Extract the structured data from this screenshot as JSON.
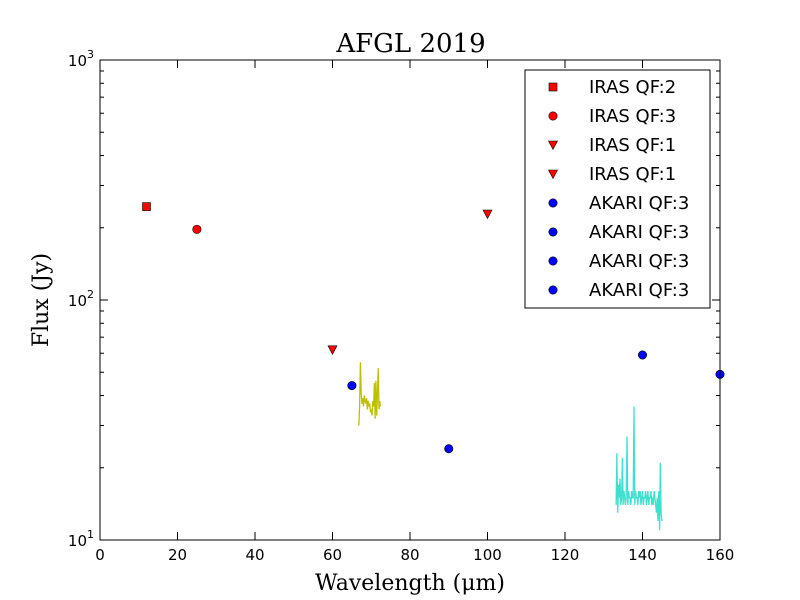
{
  "chart_data": {
    "type": "scatter",
    "title": "AFGL 2019",
    "xlabel": "Wavelength (μm)",
    "ylabel": "Flux (Jy)",
    "xlim": [
      0,
      160
    ],
    "ylim": [
      10,
      1000
    ],
    "yscale": "log",
    "x_ticks": [
      "0",
      "20",
      "40",
      "60",
      "80",
      "100",
      "120",
      "140",
      "160"
    ],
    "x_tick_values": [
      0,
      20,
      40,
      60,
      80,
      100,
      120,
      140,
      160
    ],
    "y_major_ticks": [
      {
        "value": 10,
        "base": "10",
        "exp": "1"
      },
      {
        "value": 100,
        "base": "10",
        "exp": "2"
      },
      {
        "value": 1000,
        "base": "10",
        "exp": "3"
      }
    ],
    "legend_position": "top-right",
    "colors": {
      "iras": "#ff0000",
      "akari": "#0000ff",
      "spectrum1": "#bfbf00",
      "spectrum2": "#40e0d0"
    },
    "series": [
      {
        "name": "IRAS QF:2",
        "marker": "square",
        "color": "#ff0000",
        "points": [
          [
            12,
            245
          ]
        ]
      },
      {
        "name": "IRAS QF:3",
        "marker": "circle",
        "color": "#ff0000",
        "points": [
          [
            25,
            197
          ]
        ]
      },
      {
        "name": "IRAS QF:1",
        "marker": "triangle-down",
        "color": "#ff0000",
        "points": [
          [
            60,
            62
          ]
        ]
      },
      {
        "name": "IRAS QF:1",
        "marker": "triangle-down",
        "color": "#ff0000",
        "points": [
          [
            100,
            228
          ]
        ]
      },
      {
        "name": "AKARI QF:3",
        "marker": "circle",
        "color": "#0000ff",
        "points": [
          [
            65,
            44
          ]
        ]
      },
      {
        "name": "AKARI QF:3",
        "marker": "circle",
        "color": "#0000ff",
        "points": [
          [
            90,
            24
          ]
        ]
      },
      {
        "name": "AKARI QF:3",
        "marker": "circle",
        "color": "#0000ff",
        "points": [
          [
            140,
            59
          ]
        ]
      },
      {
        "name": "AKARI QF:3",
        "marker": "circle",
        "color": "#0000ff",
        "points": [
          [
            160,
            49
          ]
        ]
      }
    ],
    "spectra": [
      {
        "name": "spectrum-1",
        "color": "#bfbf00",
        "points": [
          [
            66.8,
            30
          ],
          [
            67.0,
            36
          ],
          [
            67.2,
            55
          ],
          [
            67.4,
            41
          ],
          [
            67.6,
            37
          ],
          [
            67.8,
            39
          ],
          [
            68.0,
            36
          ],
          [
            68.2,
            40
          ],
          [
            68.4,
            38
          ],
          [
            68.6,
            37
          ],
          [
            68.8,
            39
          ],
          [
            69.0,
            35
          ],
          [
            69.2,
            38
          ],
          [
            69.4,
            36
          ],
          [
            69.6,
            37
          ],
          [
            69.8,
            34
          ],
          [
            70.0,
            35
          ],
          [
            70.2,
            33
          ],
          [
            70.4,
            38
          ],
          [
            70.6,
            36
          ],
          [
            70.8,
            45
          ],
          [
            71.0,
            32
          ],
          [
            71.2,
            46
          ],
          [
            71.4,
            33
          ],
          [
            71.6,
            40
          ],
          [
            71.8,
            52
          ],
          [
            72.0,
            35
          ],
          [
            72.2,
            38
          ],
          [
            72.3,
            36
          ]
        ]
      },
      {
        "name": "spectrum-2",
        "color": "#40e0d0",
        "points": [
          [
            133.2,
            14
          ],
          [
            133.4,
            23
          ],
          [
            133.6,
            13
          ],
          [
            133.8,
            17
          ],
          [
            134.0,
            15
          ],
          [
            134.2,
            18
          ],
          [
            134.4,
            14
          ],
          [
            134.6,
            15
          ],
          [
            134.8,
            22
          ],
          [
            135.0,
            14
          ],
          [
            135.2,
            16
          ],
          [
            135.4,
            15
          ],
          [
            135.6,
            14
          ],
          [
            135.8,
            15
          ],
          [
            136.0,
            27
          ],
          [
            136.2,
            14
          ],
          [
            136.4,
            16
          ],
          [
            136.6,
            15
          ],
          [
            136.8,
            15
          ],
          [
            137.0,
            14
          ],
          [
            137.2,
            16
          ],
          [
            137.4,
            15
          ],
          [
            137.6,
            15
          ],
          [
            137.8,
            36
          ],
          [
            138.0,
            14
          ],
          [
            138.2,
            16
          ],
          [
            138.4,
            15
          ],
          [
            138.6,
            15
          ],
          [
            138.8,
            14
          ],
          [
            139.0,
            16
          ],
          [
            139.2,
            15
          ],
          [
            139.4,
            16
          ],
          [
            139.6,
            14
          ],
          [
            139.8,
            15
          ],
          [
            140.0,
            16
          ],
          [
            140.2,
            14
          ],
          [
            140.4,
            15
          ],
          [
            140.6,
            15
          ],
          [
            140.8,
            16
          ],
          [
            141.0,
            14
          ],
          [
            141.2,
            15
          ],
          [
            141.4,
            16
          ],
          [
            141.6,
            14
          ],
          [
            141.8,
            15
          ],
          [
            142.0,
            15
          ],
          [
            142.2,
            16
          ],
          [
            142.4,
            14
          ],
          [
            142.6,
            15
          ],
          [
            142.8,
            14
          ],
          [
            143.0,
            16
          ],
          [
            143.2,
            15
          ],
          [
            143.4,
            14
          ],
          [
            143.6,
            13
          ],
          [
            143.8,
            15
          ],
          [
            144.0,
            12
          ],
          [
            144.2,
            16
          ],
          [
            144.4,
            11
          ],
          [
            144.6,
            21
          ],
          [
            144.8,
            13
          ],
          [
            145.0,
            12
          ]
        ]
      }
    ]
  }
}
